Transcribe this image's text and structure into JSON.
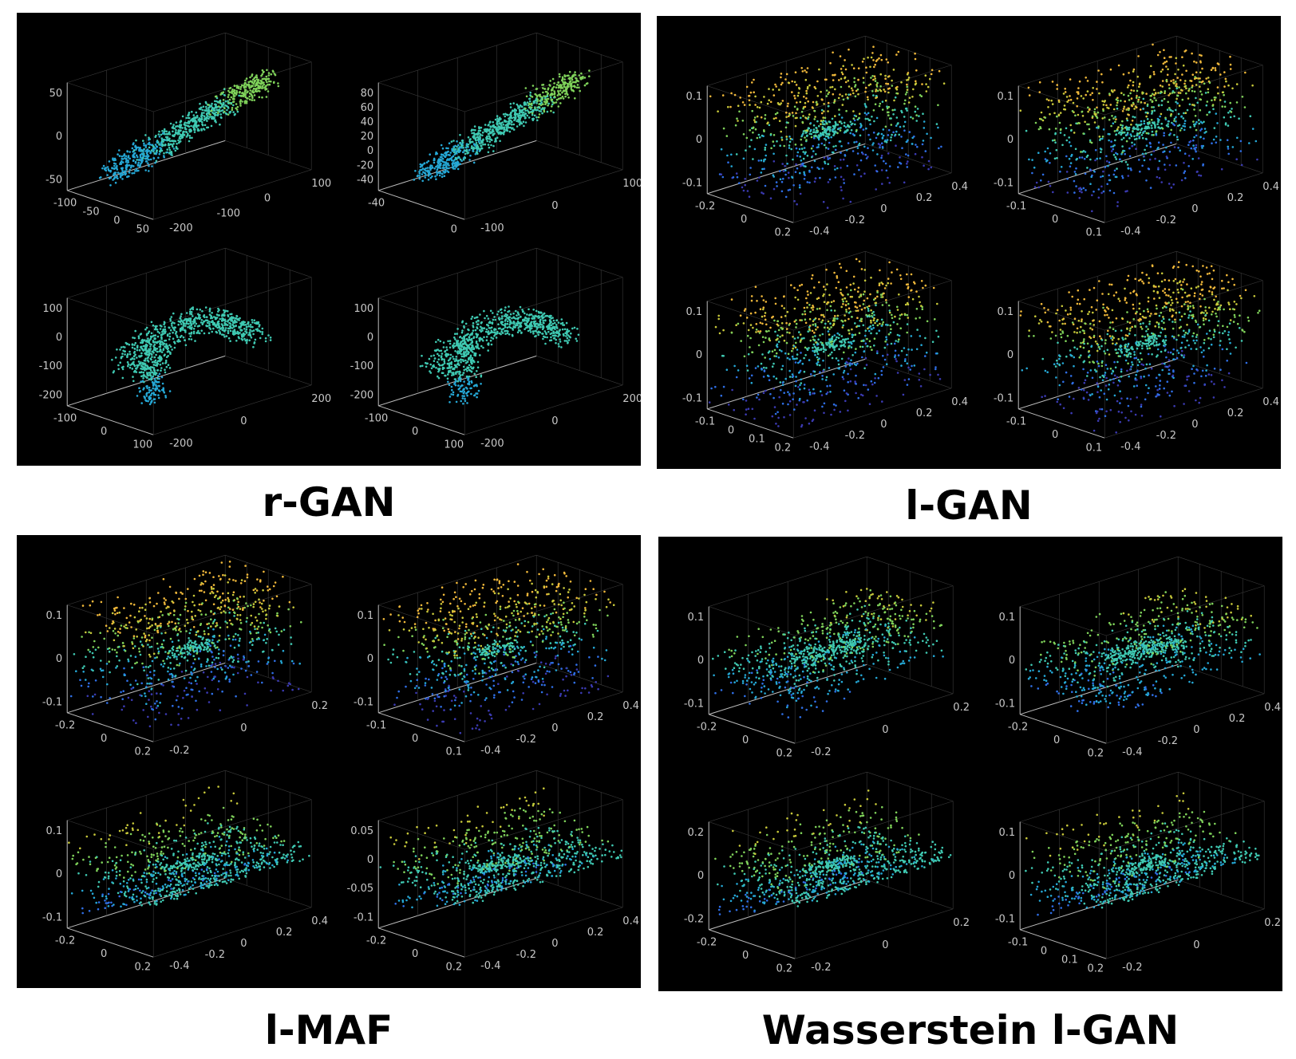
{
  "colormap": [
    "#3b3ab2",
    "#2f6fe6",
    "#25a8d6",
    "#3fc9b2",
    "#7fd25a",
    "#c8c93a",
    "#f0b83a"
  ],
  "panels": [
    {
      "caption": "r-GAN",
      "chart_data": [
        {
          "type": "scatter",
          "shape": "rgan-diag",
          "z_ticks": [
            "50",
            "0",
            "-50"
          ],
          "x_ticks": [
            "-100",
            "-50",
            "0",
            "50"
          ],
          "y_ticks": [
            "-200",
            "-100",
            "0",
            "100"
          ]
        },
        {
          "type": "scatter",
          "shape": "rgan-diag2",
          "z_ticks": [
            "80",
            "60",
            "40",
            "20",
            "0",
            "-20",
            "-40"
          ],
          "x_ticks": [
            "-40",
            "0"
          ],
          "y_ticks": [
            "-100",
            "0",
            "100"
          ]
        },
        {
          "type": "scatter",
          "shape": "rgan-arch",
          "z_ticks": [
            "100",
            "0",
            "-100",
            "-200"
          ],
          "x_ticks": [
            "-100",
            "0",
            "100"
          ],
          "y_ticks": [
            "-200",
            "0",
            "200"
          ]
        },
        {
          "type": "scatter",
          "shape": "rgan-arch",
          "z_ticks": [
            "100",
            "0",
            "-100",
            "-200"
          ],
          "x_ticks": [
            "-100",
            "0",
            "100"
          ],
          "y_ticks": [
            "-200",
            "0",
            "200"
          ]
        }
      ]
    },
    {
      "caption": "l-GAN",
      "chart_data": [
        {
          "type": "scatter",
          "shape": "box",
          "z_ticks": [
            "0.1",
            "0",
            "-0.1"
          ],
          "x_ticks": [
            "-0.2",
            "0",
            "0.2"
          ],
          "y_ticks": [
            "-0.4",
            "-0.2",
            "0",
            "0.2",
            "0.4"
          ]
        },
        {
          "type": "scatter",
          "shape": "box",
          "z_ticks": [
            "0.1",
            "0",
            "-0.1"
          ],
          "x_ticks": [
            "-0.1",
            "0",
            "0.1"
          ],
          "y_ticks": [
            "-0.4",
            "-0.2",
            "0",
            "0.2",
            "0.4"
          ]
        },
        {
          "type": "scatter",
          "shape": "box",
          "z_ticks": [
            "0.1",
            "0",
            "-0.1"
          ],
          "x_ticks": [
            "-0.1",
            "0",
            "0.1",
            "0.2"
          ],
          "y_ticks": [
            "-0.4",
            "-0.2",
            "0",
            "0.2",
            "0.4"
          ]
        },
        {
          "type": "scatter",
          "shape": "box",
          "z_ticks": [
            "0.1",
            "0",
            "-0.1"
          ],
          "x_ticks": [
            "-0.1",
            "0",
            "0.1"
          ],
          "y_ticks": [
            "-0.4",
            "-0.2",
            "0",
            "0.2",
            "0.4"
          ]
        }
      ]
    },
    {
      "caption": "l-MAF",
      "chart_data": [
        {
          "type": "scatter",
          "shape": "box",
          "z_ticks": [
            "0.1",
            "0",
            "-0.1"
          ],
          "x_ticks": [
            "-0.2",
            "0",
            "0.2"
          ],
          "y_ticks": [
            "-0.2",
            "0",
            "0.2"
          ]
        },
        {
          "type": "scatter",
          "shape": "box",
          "z_ticks": [
            "0.1",
            "0",
            "-0.1"
          ],
          "x_ticks": [
            "-0.1",
            "0",
            "0.1"
          ],
          "y_ticks": [
            "-0.4",
            "-0.2",
            "0",
            "0.2",
            "0.4"
          ]
        },
        {
          "type": "scatter",
          "shape": "wedge",
          "z_ticks": [
            "0.1",
            "0",
            "-0.1"
          ],
          "x_ticks": [
            "-0.2",
            "0",
            "0.2"
          ],
          "y_ticks": [
            "-0.4",
            "-0.2",
            "0",
            "0.2",
            "0.4"
          ]
        },
        {
          "type": "scatter",
          "shape": "wedge",
          "z_ticks": [
            "0.05",
            "0",
            "-0.05",
            "-0.1"
          ],
          "x_ticks": [
            "-0.2",
            "0",
            "0.2"
          ],
          "y_ticks": [
            "-0.4",
            "-0.2",
            "0",
            "0.2",
            "0.4"
          ]
        }
      ]
    },
    {
      "caption": "Wasserstein l-GAN",
      "chart_data": [
        {
          "type": "scatter",
          "shape": "flat",
          "z_ticks": [
            "0.1",
            "0",
            "-0.1"
          ],
          "x_ticks": [
            "-0.2",
            "0",
            "0.2"
          ],
          "y_ticks": [
            "-0.2",
            "0",
            "0.2"
          ]
        },
        {
          "type": "scatter",
          "shape": "flat",
          "z_ticks": [
            "0.1",
            "0",
            "-0.1"
          ],
          "x_ticks": [
            "-0.2",
            "0",
            "0.2"
          ],
          "y_ticks": [
            "-0.4",
            "-0.2",
            "0",
            "0.2",
            "0.4"
          ]
        },
        {
          "type": "scatter",
          "shape": "wedge",
          "z_ticks": [
            "0.2",
            "0",
            "-0.2"
          ],
          "x_ticks": [
            "-0.2",
            "0",
            "0.2"
          ],
          "y_ticks": [
            "-0.2",
            "0",
            "0.2"
          ]
        },
        {
          "type": "scatter",
          "shape": "wedge",
          "z_ticks": [
            "0.1",
            "0",
            "-0.1"
          ],
          "x_ticks": [
            "-0.1",
            "0",
            "0.1",
            "0.2"
          ],
          "y_ticks": [
            "-0.2",
            "0",
            "0.2"
          ]
        }
      ]
    }
  ]
}
